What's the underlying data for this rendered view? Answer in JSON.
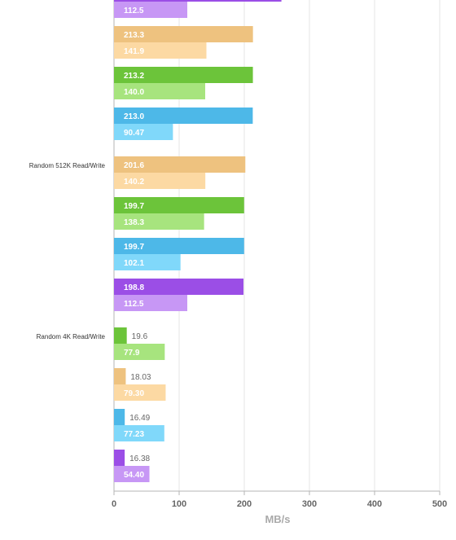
{
  "chart_data": {
    "type": "bar",
    "orientation": "horizontal",
    "xlabel": "MB/s",
    "xlim": [
      0,
      500
    ],
    "xticks": [
      0,
      100,
      200,
      300,
      400,
      500
    ],
    "grid": true,
    "colors": {
      "purple_dark": "#9b4ee6",
      "purple_light": "#c797f5",
      "orange_dark": "#eec27f",
      "orange_light": "#fcd9a3",
      "green_dark": "#6cc43a",
      "green_light": "#a7e47e",
      "blue_dark": "#4db8e8",
      "blue_light": "#80d8fa"
    },
    "rows": [
      {
        "value": 257,
        "label": "",
        "color": "purple_dark"
      },
      {
        "value": 112.5,
        "label": "112.5",
        "color": "purple_light"
      },
      {
        "value": 213.3,
        "label": "213.3",
        "color": "orange_dark"
      },
      {
        "value": 141.9,
        "label": "141.9",
        "color": "orange_light"
      },
      {
        "value": 213.2,
        "label": "213.2",
        "color": "green_dark"
      },
      {
        "value": 140.0,
        "label": "140.0",
        "color": "green_light"
      },
      {
        "value": 213.0,
        "label": "213.0",
        "color": "blue_dark"
      },
      {
        "value": 90.47,
        "label": "90.47",
        "color": "blue_light"
      },
      {
        "value": 201.6,
        "label": "201.6",
        "color": "orange_dark"
      },
      {
        "value": 140.2,
        "label": "140.2",
        "color": "orange_light"
      },
      {
        "value": 199.7,
        "label": "199.7",
        "color": "green_dark"
      },
      {
        "value": 138.3,
        "label": "138.3",
        "color": "green_light"
      },
      {
        "value": 199.7,
        "label": "199.7",
        "color": "blue_dark"
      },
      {
        "value": 102.1,
        "label": "102.1",
        "color": "blue_light"
      },
      {
        "value": 198.8,
        "label": "198.8",
        "color": "purple_dark"
      },
      {
        "value": 112.5,
        "label": "112.5",
        "color": "purple_light"
      },
      {
        "value": 19.6,
        "label": "19.6",
        "color": "green_dark"
      },
      {
        "value": 77.9,
        "label": "77.9",
        "color": "green_light"
      },
      {
        "value": 18.03,
        "label": "18.03",
        "color": "orange_dark"
      },
      {
        "value": 79.3,
        "label": "79.30",
        "color": "orange_light"
      },
      {
        "value": 16.49,
        "label": "16.49",
        "color": "blue_dark"
      },
      {
        "value": 77.23,
        "label": "77.23",
        "color": "blue_light"
      },
      {
        "value": 16.38,
        "label": "16.38",
        "color": "purple_dark"
      },
      {
        "value": 54.4,
        "label": "54.40",
        "color": "purple_light"
      }
    ],
    "category_labels": [
      {
        "text": "Random 512K Read/Write",
        "row": 8
      },
      {
        "text": "Random 4K Read/Write",
        "row": 16
      }
    ]
  }
}
